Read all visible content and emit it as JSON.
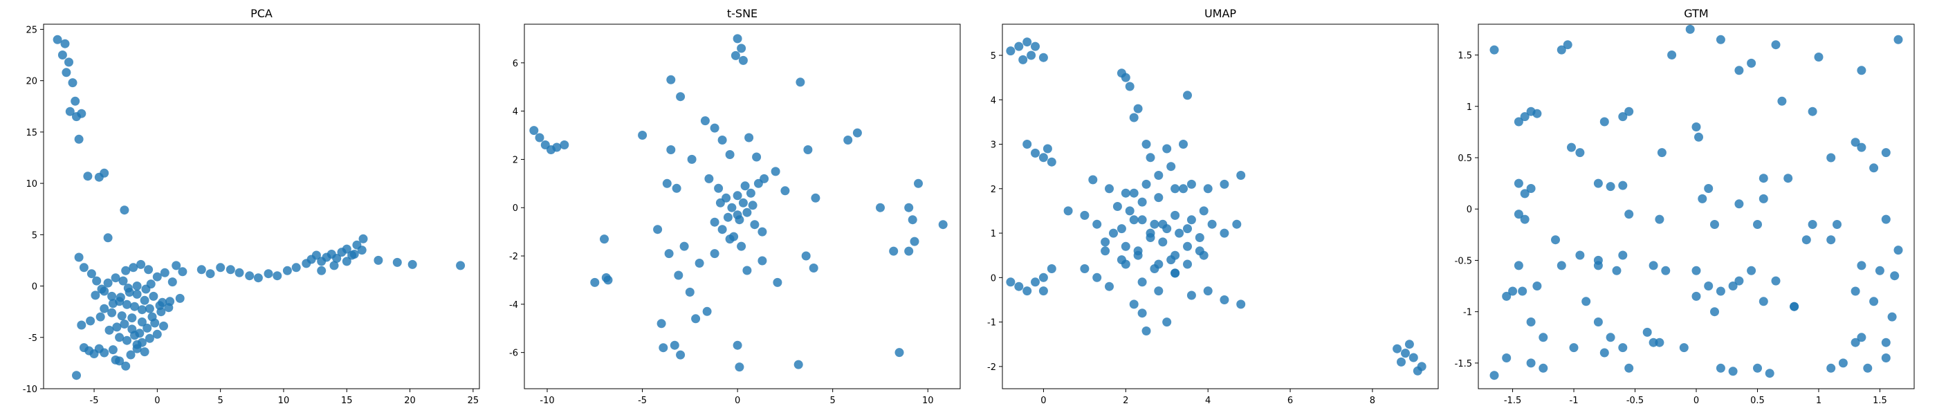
{
  "chart_data": [
    {
      "type": "scatter",
      "title": "PCA",
      "xlabel": "",
      "ylabel": "",
      "xlim": [
        -9.0,
        25.5
      ],
      "ylim": [
        -10.0,
        25.5
      ],
      "xticks": [
        -5,
        0,
        5,
        10,
        15,
        20,
        25
      ],
      "yticks": [
        -10,
        -5,
        0,
        5,
        10,
        15,
        20,
        25
      ],
      "grid": false,
      "series": [
        {
          "color": "#1f77b4",
          "x": [
            -7.9,
            -7.5,
            -7.3,
            -7.2,
            -7.0,
            -6.9,
            -6.7,
            -6.5,
            -6.4,
            -6.2,
            -6.0,
            -5.5,
            -4.6,
            -4.2,
            -3.9,
            -2.6,
            -6.2,
            -5.8,
            -5.2,
            -4.8,
            -4.2,
            -3.6,
            -3.0,
            -2.4,
            -1.8,
            -1.2,
            -0.6,
            0.2,
            1.0,
            1.8,
            -6.0,
            -5.3,
            -4.5,
            -3.6,
            -2.8,
            -2.0,
            -1.2,
            -0.4,
            0.3,
            -4.9,
            -4.4,
            -3.9,
            -3.3,
            -2.7,
            -2.3,
            -1.6,
            -1.0,
            -0.5,
            0.0,
            0.6,
            1.2,
            -4.2,
            -3.5,
            -2.9,
            -2.2,
            -1.6,
            -0.9,
            -0.3,
            0.4,
            0.9,
            -3.8,
            -3.2,
            -2.6,
            -2.0,
            -1.4,
            -0.8,
            -0.2,
            0.5,
            -3.0,
            -2.4,
            -1.8,
            -1.2,
            -0.6,
            0.0,
            -2.5,
            -1.9,
            -1.3,
            -0.7,
            -1.6,
            -1.0,
            -5.8,
            -5.4,
            -5.0,
            -4.6,
            -4.2,
            -3.5,
            -3.0,
            -2.5,
            -2.1,
            -1.6,
            -6.4,
            -3.3,
            1.5,
            2.0,
            3.5,
            4.2,
            5.0,
            5.8,
            6.5,
            7.3,
            8.0,
            8.8,
            9.5,
            10.3,
            11.0,
            11.8,
            12.2,
            12.6,
            13.0,
            13.4,
            13.8,
            14.2,
            14.6,
            15.0,
            15.4,
            15.8,
            16.2,
            13.0,
            14.0,
            15.0,
            15.6,
            16.3,
            17.5,
            19.0,
            20.2,
            24.0
          ],
          "y": [
            24.0,
            22.5,
            23.6,
            20.8,
            21.8,
            17.0,
            19.8,
            18.0,
            16.5,
            14.3,
            16.8,
            10.7,
            10.6,
            11.0,
            4.7,
            7.4,
            2.8,
            1.8,
            1.2,
            0.5,
            -0.5,
            -1.0,
            -1.5,
            -1.8,
            -2.0,
            -2.3,
            -2.2,
            -1.9,
            -1.5,
            -1.2,
            -3.8,
            -3.4,
            -3.0,
            -2.6,
            -2.9,
            -3.1,
            -3.5,
            -3.0,
            -2.5,
            -0.9,
            -0.3,
            0.3,
            0.8,
            0.5,
            -0.2,
            -0.8,
            -1.4,
            0.2,
            0.9,
            1.3,
            0.4,
            -2.2,
            -1.7,
            -1.1,
            -0.6,
            0.0,
            -0.3,
            -1.0,
            -1.6,
            -2.1,
            -4.3,
            -4.0,
            -3.7,
            -4.2,
            -4.6,
            -4.1,
            -3.6,
            -3.9,
            -5.0,
            -5.3,
            -4.8,
            -5.5,
            -5.1,
            -4.7,
            1.5,
            1.8,
            2.1,
            1.6,
            -6.1,
            -6.4,
            -6.0,
            -6.3,
            -6.6,
            -6.1,
            -6.5,
            -6.2,
            -7.3,
            -7.8,
            -6.7,
            -5.7,
            -8.7,
            -7.2,
            2.0,
            1.4,
            1.6,
            1.2,
            1.8,
            1.6,
            1.3,
            1.0,
            0.8,
            1.2,
            1.0,
            1.5,
            1.8,
            2.2,
            2.6,
            3.0,
            2.4,
            2.8,
            3.1,
            2.7,
            3.3,
            3.6,
            3.0,
            4.0,
            3.5,
            1.5,
            2.0,
            2.4,
            3.1,
            4.6,
            2.5,
            2.3,
            2.1,
            2.0
          ]
        }
      ]
    },
    {
      "type": "scatter",
      "title": "t-SNE",
      "xlabel": "",
      "ylabel": "",
      "xlim": [
        -11.2,
        11.7
      ],
      "ylim": [
        -7.5,
        7.6
      ],
      "xticks": [
        -10,
        -5,
        0,
        5,
        10
      ],
      "yticks": [
        -6,
        -4,
        -2,
        0,
        2,
        4,
        6
      ],
      "grid": false,
      "series": [
        {
          "color": "#1f77b4",
          "x": [
            -10.7,
            -10.4,
            -10.1,
            -9.8,
            -9.5,
            -9.1,
            0.0,
            0.2,
            -0.1,
            0.3,
            -3.5,
            -3.0,
            -5.0,
            -7.0,
            -7.5,
            -6.8,
            -6.9,
            -3.5,
            -3.7,
            -3.2,
            -2.4,
            -1.7,
            -1.2,
            -0.8,
            -0.4,
            0.6,
            1.0,
            1.4,
            2.0,
            2.5,
            3.3,
            3.7,
            4.1,
            5.8,
            6.3,
            7.5,
            -1.5,
            -1.0,
            -0.6,
            -0.3,
            0.0,
            0.3,
            0.7,
            1.1,
            -1.2,
            -0.8,
            -0.4,
            0.1,
            0.5,
            0.9,
            1.3,
            -0.9,
            -0.5,
            0.0,
            0.4,
            0.8,
            -0.2,
            0.2,
            -4.2,
            -2.8,
            -2.0,
            -1.2,
            0.5,
            1.3,
            2.1,
            3.6,
            4.0,
            -3.6,
            -3.1,
            -2.5,
            -2.2,
            -1.6,
            0.0,
            0.1,
            3.2,
            8.5,
            8.2,
            9.0,
            9.2,
            9.5,
            10.8,
            9.0,
            9.3,
            -3.9,
            -3.3,
            -3.0,
            -4.0
          ],
          "y": [
            3.2,
            2.9,
            2.6,
            2.4,
            2.5,
            2.6,
            7.0,
            6.6,
            6.3,
            6.1,
            5.3,
            4.6,
            3.0,
            -1.3,
            -3.1,
            -3.0,
            -2.9,
            2.4,
            1.0,
            0.8,
            2.0,
            3.6,
            3.3,
            2.8,
            2.2,
            2.9,
            2.1,
            1.2,
            1.5,
            0.7,
            5.2,
            2.4,
            0.4,
            2.8,
            3.1,
            0.0,
            1.2,
            0.8,
            0.4,
            0.0,
            -0.3,
            0.2,
            0.6,
            1.0,
            -0.6,
            -0.9,
            -1.3,
            -0.5,
            -0.2,
            -0.7,
            -1.0,
            0.2,
            -0.4,
            0.5,
            0.9,
            0.1,
            -1.2,
            -1.6,
            -0.9,
            -1.6,
            -2.3,
            -1.9,
            -2.6,
            -2.2,
            -3.1,
            -2.0,
            -2.5,
            -1.9,
            -2.8,
            -3.5,
            -4.6,
            -4.3,
            -5.7,
            -6.6,
            -6.5,
            -6.0,
            -1.8,
            0.0,
            -0.5,
            1.0,
            -0.7,
            -1.8,
            -1.4,
            -5.8,
            -5.7,
            -6.1,
            -4.8
          ]
        }
      ]
    },
    {
      "type": "scatter",
      "title": "UMAP",
      "xlabel": "",
      "ylabel": "",
      "xlim": [
        -1.0,
        9.6
      ],
      "ylim": [
        -2.5,
        5.7
      ],
      "xticks": [
        0,
        2,
        4,
        6,
        8
      ],
      "yticks": [
        -2,
        -1,
        0,
        1,
        2,
        3,
        4,
        5
      ],
      "grid": false,
      "series": [
        {
          "color": "#1f77b4",
          "x": [
            -0.8,
            -0.6,
            -0.4,
            -0.2,
            -0.5,
            -0.3,
            0.0,
            -0.4,
            -0.2,
            0.0,
            0.1,
            0.2,
            -0.8,
            -0.6,
            -0.4,
            -0.2,
            0.0,
            0.2,
            0.0,
            1.9,
            2.0,
            2.1,
            2.3,
            2.2,
            3.5,
            2.5,
            0.6,
            1.0,
            1.3,
            1.7,
            1.5,
            1.9,
            2.2,
            2.6,
            2.9,
            3.2,
            3.5,
            3.8,
            4.1,
            4.4,
            4.7,
            4.8,
            1.2,
            1.6,
            2.0,
            2.4,
            2.8,
            3.2,
            3.6,
            4.0,
            4.4,
            1.8,
            2.1,
            2.4,
            2.7,
            3.0,
            3.3,
            3.6,
            3.9,
            2.0,
            2.3,
            2.6,
            2.9,
            3.2,
            3.5,
            3.8,
            2.2,
            2.5,
            2.8,
            3.1,
            3.4,
            2.6,
            3.0,
            3.4,
            2.8,
            3.2,
            1.0,
            1.3,
            1.6,
            2.0,
            2.4,
            2.8,
            3.2,
            3.6,
            4.0,
            4.4,
            4.8,
            1.5,
            1.9,
            2.3,
            2.7,
            3.1,
            3.5,
            3.9,
            2.5,
            2.4,
            3.0,
            2.2,
            8.6,
            8.8,
            8.7,
            9.0,
            9.2,
            9.1,
            8.9
          ],
          "y": [
            5.1,
            5.2,
            5.3,
            5.2,
            4.9,
            5.0,
            4.95,
            3.0,
            2.8,
            2.7,
            2.9,
            2.6,
            -0.1,
            -0.2,
            -0.3,
            -0.1,
            0.0,
            0.2,
            -0.3,
            4.6,
            4.5,
            4.3,
            3.8,
            3.6,
            4.1,
            3.0,
            1.5,
            1.4,
            1.2,
            1.0,
            0.8,
            1.1,
            1.3,
            1.0,
            1.2,
            1.4,
            1.1,
            0.9,
            1.2,
            1.0,
            1.2,
            2.3,
            2.2,
            2.0,
            1.9,
            1.7,
            1.8,
            2.0,
            2.1,
            2.0,
            2.1,
            1.6,
            1.5,
            1.3,
            1.2,
            1.1,
            1.0,
            1.3,
            1.5,
            0.7,
            0.6,
            0.9,
            0.8,
            0.5,
            0.7,
            0.6,
            1.9,
            2.1,
            2.3,
            2.5,
            2.0,
            2.7,
            2.9,
            3.0,
            0.3,
            0.1,
            0.2,
            0.0,
            -0.2,
            0.3,
            -0.1,
            -0.3,
            0.1,
            -0.4,
            -0.3,
            -0.5,
            -0.6,
            0.6,
            0.4,
            0.5,
            0.2,
            0.4,
            0.3,
            0.5,
            -1.2,
            -0.8,
            -1.0,
            -0.6,
            -1.6,
            -1.7,
            -1.9,
            -1.8,
            -2.0,
            -2.1,
            -1.5
          ]
        }
      ]
    },
    {
      "type": "scatter",
      "title": "GTM",
      "xlabel": "",
      "ylabel": "",
      "xlim": [
        -1.78,
        1.78
      ],
      "ylim": [
        -1.75,
        1.8
      ],
      "xticks": [
        -1.5,
        -1.0,
        -0.5,
        0.0,
        0.5,
        1.0,
        1.5
      ],
      "yticks": [
        -1.5,
        -1.0,
        -0.5,
        0.0,
        0.5,
        1.0,
        1.5
      ],
      "grid": false,
      "series": [
        {
          "color": "#1f77b4",
          "x": [
            -1.65,
            -1.4,
            -1.35,
            -1.45,
            -1.3,
            -1.1,
            -1.05,
            -0.75,
            -0.6,
            -0.55,
            -0.2,
            -0.05,
            0.2,
            0.35,
            0.45,
            0.65,
            0.7,
            1.0,
            1.35,
            1.65,
            -1.45,
            -1.4,
            -1.35,
            -0.95,
            -1.02,
            -0.8,
            -0.7,
            -0.6,
            -0.28,
            0.0,
            0.02,
            0.1,
            0.55,
            0.75,
            0.95,
            1.1,
            1.3,
            1.35,
            1.45,
            1.55,
            -1.45,
            -1.4,
            -1.15,
            -0.95,
            -0.8,
            -0.65,
            -0.55,
            -0.3,
            0.05,
            0.15,
            0.35,
            0.5,
            0.55,
            0.9,
            0.95,
            1.15,
            1.35,
            1.55,
            1.62,
            -1.45,
            -1.42,
            -1.3,
            -1.1,
            -0.9,
            -0.8,
            -0.6,
            -0.35,
            -0.25,
            0.0,
            0.2,
            0.3,
            0.45,
            0.65,
            0.8,
            1.1,
            1.3,
            1.45,
            1.5,
            1.65,
            -1.55,
            -1.5,
            -1.35,
            -1.25,
            -1.0,
            -0.8,
            -0.7,
            -0.6,
            -0.4,
            -0.35,
            0.0,
            0.1,
            0.15,
            0.35,
            0.55,
            0.8,
            1.3,
            1.35,
            1.55,
            1.6,
            -1.65,
            -1.55,
            -1.35,
            -1.25,
            -0.75,
            -0.55,
            -0.3,
            -0.1,
            0.2,
            0.3,
            0.5,
            0.6,
            1.1,
            1.2,
            1.4,
            1.55
          ],
          "y": [
            1.55,
            0.9,
            0.95,
            0.85,
            0.93,
            1.55,
            1.6,
            0.85,
            0.9,
            0.95,
            1.5,
            1.75,
            1.65,
            1.35,
            1.42,
            1.6,
            1.05,
            1.48,
            1.35,
            1.65,
            0.25,
            0.15,
            0.2,
            0.55,
            0.6,
            0.25,
            0.22,
            0.23,
            0.55,
            0.8,
            0.7,
            0.2,
            0.3,
            0.3,
            0.95,
            0.5,
            0.65,
            0.6,
            0.4,
            0.55,
            -0.05,
            -0.1,
            -0.3,
            -0.45,
            -0.5,
            -0.6,
            -0.05,
            -0.1,
            0.1,
            -0.15,
            0.05,
            -0.15,
            0.1,
            -0.3,
            -0.15,
            -0.15,
            -0.55,
            -0.1,
            -0.65,
            -0.55,
            -0.8,
            -0.75,
            -0.55,
            -0.9,
            -0.55,
            -0.45,
            -0.55,
            -0.6,
            -0.6,
            -0.8,
            -0.75,
            -0.6,
            -0.7,
            -0.95,
            -0.3,
            -0.8,
            -0.9,
            -0.6,
            -0.4,
            -0.85,
            -0.8,
            -1.1,
            -1.25,
            -1.35,
            -1.1,
            -1.25,
            -1.35,
            -1.2,
            -1.3,
            -0.85,
            -0.75,
            -1.0,
            -0.7,
            -0.9,
            -0.95,
            -1.3,
            -1.25,
            -1.3,
            -1.05,
            -1.62,
            -1.45,
            -1.5,
            -1.55,
            -1.4,
            -1.55,
            -1.3,
            -1.35,
            -1.55,
            -1.58,
            -1.55,
            -1.6,
            -1.55,
            -1.5,
            -1.55,
            -1.45
          ]
        }
      ]
    }
  ]
}
